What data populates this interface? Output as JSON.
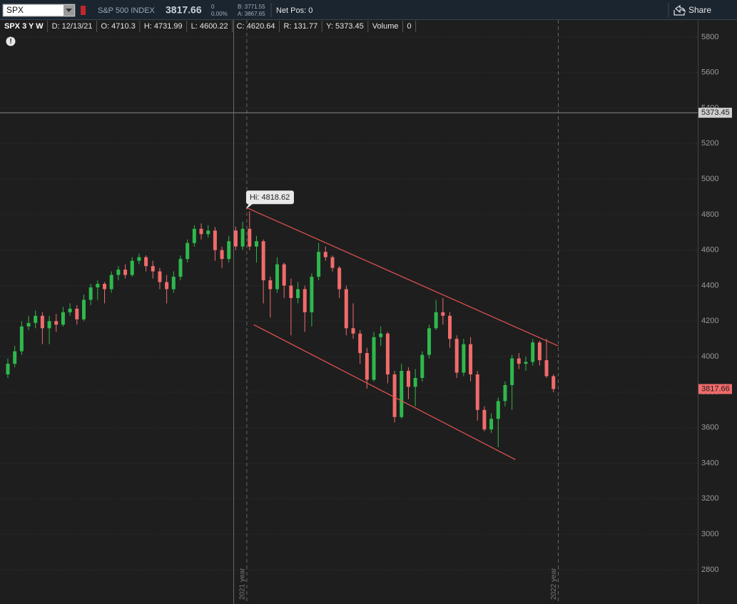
{
  "toolbar": {
    "symbol": "SPX",
    "description": "S&P 500 INDEX",
    "change": "0",
    "change_pct": "0.00%",
    "bid": "B: 3771.55",
    "ask": "A: 3867.65",
    "net_pos": "Net Pos: 0",
    "share": "Share"
  },
  "status": {
    "title": "SPX 3 Y W",
    "items": [
      "D: 12/13/21",
      "O: 4710.3",
      "H: 4731.99",
      "L: 4600.22",
      "C: 4620.64",
      "R: 131.77",
      "Y: 5373.45",
      "Volume",
      "0"
    ]
  },
  "chart_data": {
    "type": "candlestick",
    "ylim": [
      2607,
      5896
    ],
    "yticks": [
      2800,
      3000,
      3200,
      3400,
      3600,
      3800,
      4000,
      4200,
      4400,
      4600,
      4800,
      5000,
      5200,
      5400,
      5600,
      5800
    ],
    "grid": true,
    "up_color": "#2fb84c",
    "down_color": "#f06b6b",
    "ohlc": [
      [
        3900,
        3990,
        3880,
        3960
      ],
      [
        3960,
        4060,
        3940,
        4030
      ],
      [
        4030,
        4200,
        4010,
        4170
      ],
      [
        4170,
        4230,
        4150,
        4190
      ],
      [
        4190,
        4260,
        4160,
        4230
      ],
      [
        4230,
        4250,
        4070,
        4160
      ],
      [
        4160,
        4230,
        4070,
        4200
      ],
      [
        4200,
        4240,
        4140,
        4180
      ],
      [
        4180,
        4280,
        4170,
        4250
      ],
      [
        4250,
        4300,
        4230,
        4270
      ],
      [
        4270,
        4290,
        4180,
        4210
      ],
      [
        4210,
        4350,
        4200,
        4320
      ],
      [
        4320,
        4410,
        4290,
        4390
      ],
      [
        4390,
        4430,
        4320,
        4410
      ],
      [
        4410,
        4420,
        4300,
        4380
      ],
      [
        4380,
        4480,
        4360,
        4460
      ],
      [
        4460,
        4510,
        4430,
        4490
      ],
      [
        4490,
        4520,
        4440,
        4460
      ],
      [
        4460,
        4560,
        4450,
        4540
      ],
      [
        4540,
        4580,
        4520,
        4560
      ],
      [
        4560,
        4570,
        4480,
        4510
      ],
      [
        4510,
        4540,
        4440,
        4480
      ],
      [
        4480,
        4500,
        4380,
        4420
      ],
      [
        4420,
        4460,
        4300,
        4380
      ],
      [
        4380,
        4480,
        4360,
        4450
      ],
      [
        4450,
        4570,
        4430,
        4550
      ],
      [
        4550,
        4660,
        4530,
        4640
      ],
      [
        4640,
        4740,
        4620,
        4720
      ],
      [
        4720,
        4750,
        4660,
        4690
      ],
      [
        4690,
        4740,
        4670,
        4710
      ],
      [
        4710,
        4730,
        4540,
        4600
      ],
      [
        4600,
        4620,
        4500,
        4550
      ],
      [
        4550,
        4680,
        4530,
        4650
      ],
      [
        4710.3,
        4731.99,
        4600.22,
        4620.64
      ],
      [
        4620,
        4760,
        4600,
        4720
      ],
      [
        4720,
        4818.62,
        4600,
        4620
      ],
      [
        4620,
        4680,
        4530,
        4650
      ],
      [
        4650,
        4660,
        4300,
        4430
      ],
      [
        4430,
        4450,
        4220,
        4380
      ],
      [
        4380,
        4560,
        4360,
        4520
      ],
      [
        4520,
        4530,
        4330,
        4400
      ],
      [
        4400,
        4440,
        4120,
        4330
      ],
      [
        4330,
        4420,
        4300,
        4380
      ],
      [
        4380,
        4400,
        4140,
        4250
      ],
      [
        4250,
        4470,
        4170,
        4450
      ],
      [
        4450,
        4640,
        4430,
        4590
      ],
      [
        4590,
        4620,
        4540,
        4560
      ],
      [
        4560,
        4570,
        4480,
        4500
      ],
      [
        4500,
        4510,
        4330,
        4380
      ],
      [
        4380,
        4400,
        4120,
        4160
      ],
      [
        4160,
        4300,
        4100,
        4130
      ],
      [
        4130,
        4150,
        3960,
        4020
      ],
      [
        4020,
        4050,
        3820,
        3870
      ],
      [
        3870,
        4140,
        3860,
        4110
      ],
      [
        4110,
        4170,
        4060,
        4130
      ],
      [
        4130,
        4140,
        3850,
        3900
      ],
      [
        3900,
        3920,
        3630,
        3660
      ],
      [
        3660,
        3960,
        3650,
        3920
      ],
      [
        3920,
        3940,
        3760,
        3830
      ],
      [
        3830,
        3930,
        3720,
        3880
      ],
      [
        3880,
        4030,
        3860,
        4010
      ],
      [
        4010,
        4180,
        3990,
        4160
      ],
      [
        4160,
        4320,
        4150,
        4250
      ],
      [
        4250,
        4330,
        4180,
        4230
      ],
      [
        4230,
        4250,
        4050,
        4100
      ],
      [
        4100,
        4120,
        3880,
        3910
      ],
      [
        3910,
        4100,
        3890,
        4070
      ],
      [
        4070,
        4110,
        3860,
        3900
      ],
      [
        3900,
        3920,
        3640,
        3700
      ],
      [
        3700,
        3720,
        3580,
        3590
      ],
      [
        3590,
        3680,
        3570,
        3650
      ],
      [
        3650,
        3770,
        3490,
        3750
      ],
      [
        3750,
        3860,
        3720,
        3840
      ],
      [
        3840,
        4010,
        3700,
        3990
      ],
      [
        3990,
        4020,
        3930,
        3960
      ],
      [
        3960,
        4000,
        3920,
        3970
      ],
      [
        3970,
        4100,
        3950,
        4080
      ],
      [
        4080,
        4090,
        3950,
        3980
      ],
      [
        3980,
        4100,
        3880,
        3890
      ],
      [
        3890,
        3900,
        3800,
        3817.66
      ]
    ],
    "year_marks": [
      {
        "index": 34.6,
        "label": "2021 year"
      },
      {
        "index": 79.7,
        "label": "2022 year"
      }
    ],
    "trendlines": [
      {
        "from": [
          34.5,
          4840
        ],
        "to": [
          79.7,
          4060
        ],
        "color": "#e05050"
      },
      {
        "from": [
          35.6,
          4180
        ],
        "to": [
          73.5,
          3420
        ],
        "color": "#e05050"
      }
    ],
    "hi_label": "Hi: 4818.62",
    "hi_point": [
      34.5,
      4818.62
    ],
    "crosshair": {
      "index": 32.7,
      "value": 5373.45
    },
    "last": 3817.66
  }
}
